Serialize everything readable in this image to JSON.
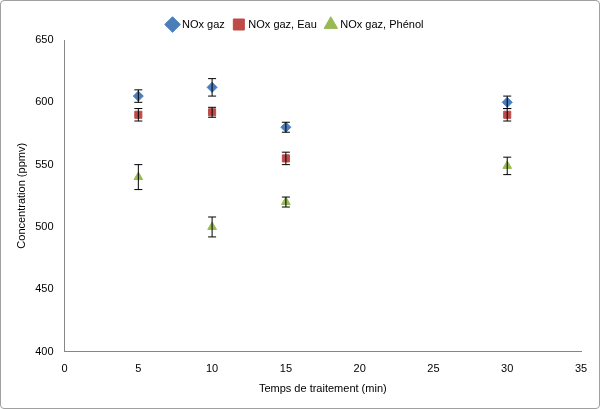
{
  "chart_data": {
    "type": "scatter",
    "x_label": "Temps de traitement (min)",
    "y_label": "Concentration (ppmv)",
    "xlim": [
      0,
      35
    ],
    "xticks": [
      0,
      5,
      10,
      15,
      20,
      25,
      30,
      35
    ],
    "ylim": [
      400,
      650
    ],
    "yticks": [
      400,
      450,
      500,
      550,
      600,
      650
    ],
    "grid": false,
    "legend": "top",
    "series": [
      {
        "name": "NOx gaz",
        "color": "#4a7ebb",
        "marker": "diamond",
        "x": [
          5,
          10,
          15,
          30
        ],
        "values": [
          605,
          612,
          580,
          600
        ],
        "errors": [
          5,
          7,
          4,
          5
        ]
      },
      {
        "name": "NOx gaz, Eau",
        "color": "#be4b48",
        "marker": "square",
        "x": [
          5,
          10,
          15,
          30
        ],
        "values": [
          590,
          592,
          555,
          590
        ],
        "errors": [
          5,
          4,
          5,
          5
        ]
      },
      {
        "name": "NOx gaz, Phénol",
        "color": "#98b954",
        "marker": "triangle",
        "x": [
          5,
          10,
          15,
          30
        ],
        "values": [
          540,
          500,
          520,
          549
        ],
        "errors": [
          10,
          8,
          4,
          7
        ]
      }
    ]
  }
}
